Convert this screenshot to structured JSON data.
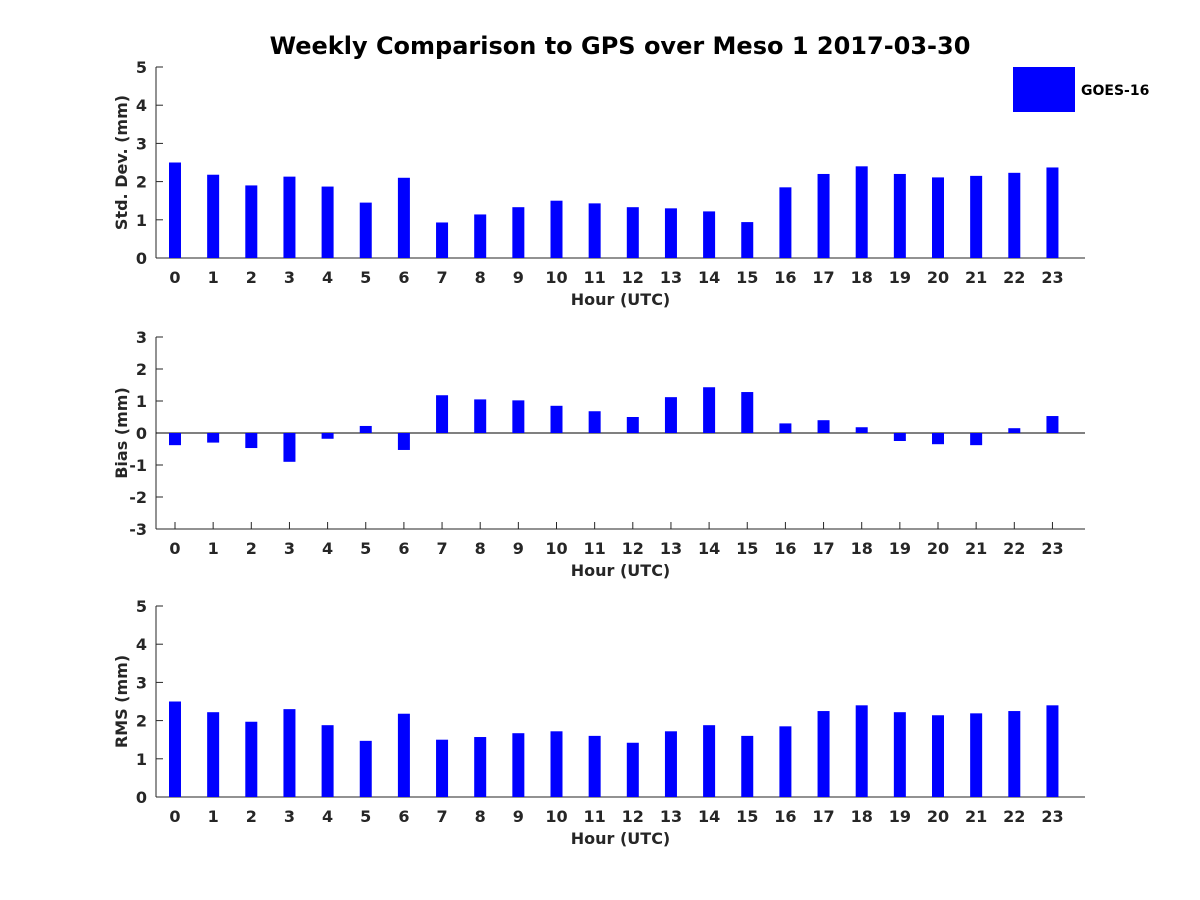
{
  "title": "Weekly Comparison to GPS over Meso 1 2017-03-30",
  "legend": {
    "label": "GOES-16",
    "color": "#0000ff"
  },
  "chart_data": [
    {
      "type": "bar",
      "name": "std-dev",
      "ylabel": "Std. Dev. (mm)",
      "xlabel": "Hour (UTC)",
      "ylim": [
        0,
        5
      ],
      "yticks": [
        0,
        1,
        2,
        3,
        4,
        5
      ],
      "categories": [
        "0",
        "1",
        "2",
        "3",
        "4",
        "5",
        "6",
        "7",
        "8",
        "9",
        "10",
        "11",
        "12",
        "13",
        "14",
        "15",
        "16",
        "17",
        "18",
        "19",
        "20",
        "21",
        "22",
        "23"
      ],
      "series": [
        {
          "name": "GOES-16",
          "values": [
            2.5,
            2.18,
            1.9,
            2.13,
            1.87,
            1.45,
            2.1,
            0.93,
            1.14,
            1.33,
            1.5,
            1.43,
            1.33,
            1.3,
            1.22,
            0.94,
            1.85,
            2.2,
            2.4,
            2.2,
            2.11,
            2.15,
            2.23,
            2.37
          ]
        }
      ]
    },
    {
      "type": "bar",
      "name": "bias",
      "ylabel": "Bias (mm)",
      "xlabel": "Hour (UTC)",
      "ylim": [
        -3,
        3
      ],
      "yticks": [
        -3,
        -2,
        -1,
        0,
        1,
        2,
        3
      ],
      "categories": [
        "0",
        "1",
        "2",
        "3",
        "4",
        "5",
        "6",
        "7",
        "8",
        "9",
        "10",
        "11",
        "12",
        "13",
        "14",
        "15",
        "16",
        "17",
        "18",
        "19",
        "20",
        "21",
        "22",
        "23"
      ],
      "series": [
        {
          "name": "GOES-16",
          "values": [
            -0.38,
            -0.3,
            -0.47,
            -0.9,
            -0.18,
            0.22,
            -0.53,
            1.18,
            1.05,
            1.02,
            0.85,
            0.68,
            0.5,
            1.12,
            1.43,
            1.28,
            0.3,
            0.4,
            0.18,
            -0.25,
            -0.35,
            -0.38,
            0.15,
            0.53
          ]
        }
      ]
    },
    {
      "type": "bar",
      "name": "rms",
      "ylabel": "RMS (mm)",
      "xlabel": "Hour (UTC)",
      "ylim": [
        0,
        5
      ],
      "yticks": [
        0,
        1,
        2,
        3,
        4,
        5
      ],
      "categories": [
        "0",
        "1",
        "2",
        "3",
        "4",
        "5",
        "6",
        "7",
        "8",
        "9",
        "10",
        "11",
        "12",
        "13",
        "14",
        "15",
        "16",
        "17",
        "18",
        "19",
        "20",
        "21",
        "22",
        "23"
      ],
      "series": [
        {
          "name": "GOES-16",
          "values": [
            2.5,
            2.22,
            1.97,
            2.3,
            1.88,
            1.47,
            2.18,
            1.5,
            1.57,
            1.67,
            1.72,
            1.6,
            1.42,
            1.72,
            1.88,
            1.6,
            1.85,
            2.25,
            2.4,
            2.22,
            2.14,
            2.19,
            2.25,
            2.4
          ]
        }
      ]
    }
  ]
}
